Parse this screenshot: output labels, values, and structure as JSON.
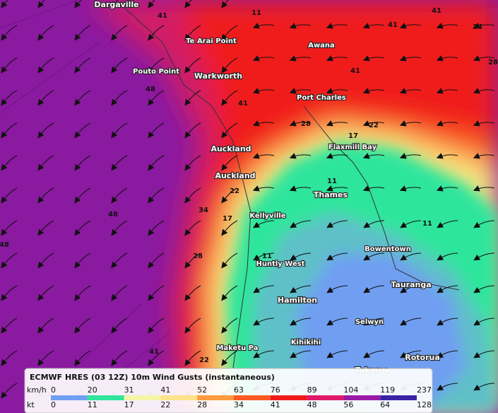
{
  "map": {
    "places": [
      "Dargaville",
      "Te Arai Point",
      "Awana",
      "Pouto Point",
      "Warkworth",
      "Port Charles",
      "Auckland",
      "Flaxmill Bay",
      "Auckland",
      "Thames",
      "Kellyville",
      "Bowentown",
      "Huntly West",
      "Tauranga",
      "Hamilton",
      "Selwyn",
      "Kihikihi",
      "Maketu Pa",
      "Rotorua",
      "Tokoroa"
    ],
    "contour_labels": [
      "41",
      "11",
      "41",
      "41",
      "34",
      "28",
      "41",
      "48",
      "41",
      "17",
      "22",
      "28",
      "11",
      "11",
      "48",
      "48",
      "34",
      "17",
      "28",
      "22",
      "11",
      "41",
      "22"
    ]
  },
  "legend": {
    "title": "ECMWF HRES (03 12Z) 10m Wind Gusts (instantaneous)",
    "units": [
      "km/h",
      "kt"
    ],
    "kmh": [
      0,
      20,
      31,
      41,
      52,
      63,
      76,
      89,
      104,
      119,
      237
    ],
    "kt": [
      0,
      11,
      17,
      22,
      28,
      34,
      41,
      48,
      56,
      64,
      128
    ],
    "colors": [
      "#6f9ff2",
      "#2ee59c",
      "#f4f5a6",
      "#fde28a",
      "#fd9a3c",
      "#fb5a22",
      "#f01a1a",
      "#e0186a",
      "#9a1aa8",
      "#3a24a6"
    ]
  }
}
